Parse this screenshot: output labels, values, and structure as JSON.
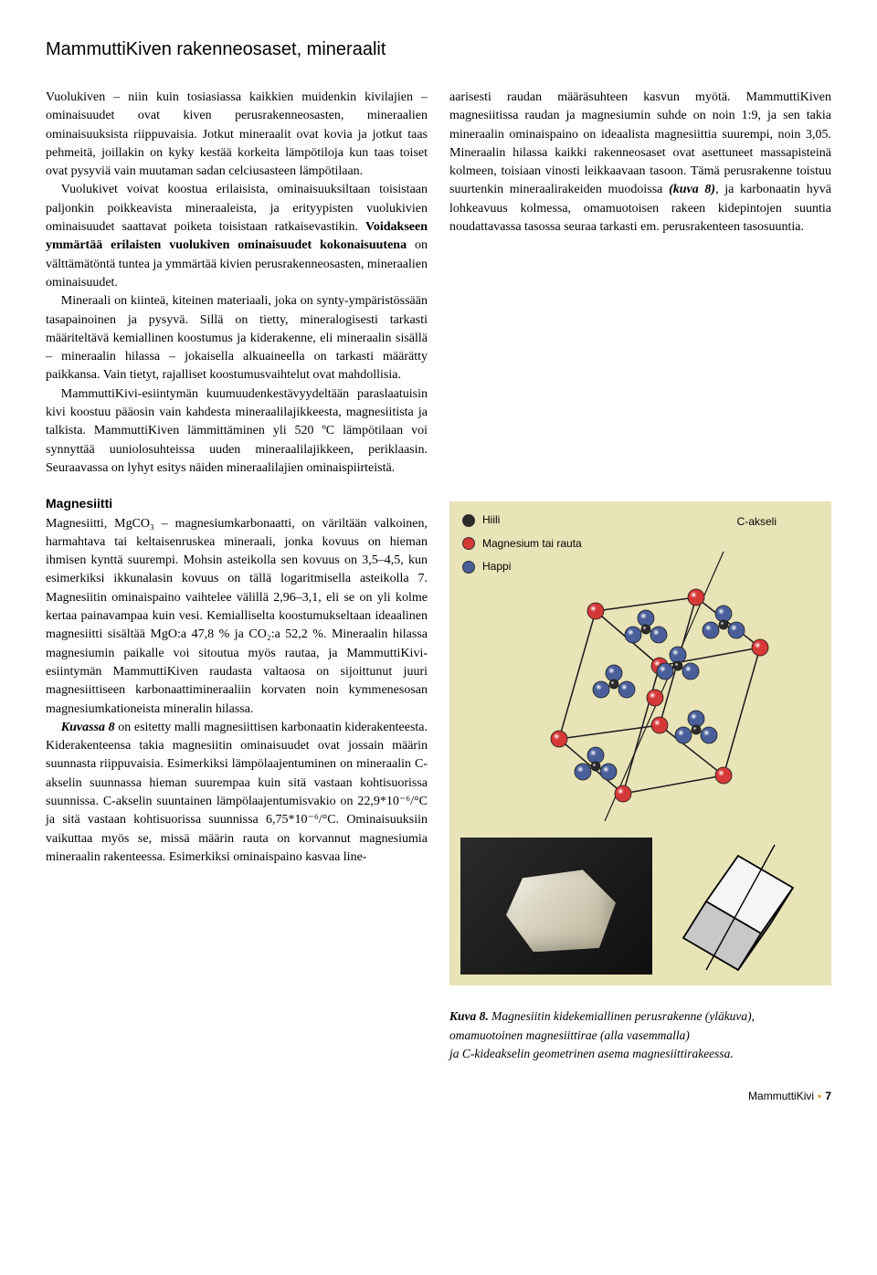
{
  "page_title": "MammuttiKiven rakenneosaset, mineraalit",
  "left": {
    "p1": "Vuolukiven – niin kuin tosiasiassa kaikkien muidenkin kivilajien – ominaisuudet ovat kiven perusrakenneosasten, mineraalien ominaisuuksista riippuvaisia. Jotkut mineraalit ovat kovia ja jotkut taas pehmeitä, joillakin on kyky kestää korkeita lämpötiloja kun taas toiset ovat pysyviä vain muutaman sadan celciusasteen lämpötilaan.",
    "p2a": "Vuolukivet voivat koostua erilaisista, ominaisuuksiltaan toisistaan paljonkin poikkeavista mineraaleista, ja erityypisten vuolukivien ominaisuudet saattavat poiketa toisistaan ratkaisevastikin. ",
    "p2b": "Voidakseen ymmärtää erilaisten vuolukiven ominaisuudet kokonaisuutena",
    "p2c": " on välttämätöntä tuntea ja ymmärtää kivien perusrakenneosasten, mineraalien ominaisuudet.",
    "p3": "Mineraali on kiinteä, kiteinen materiaali, joka on synty-ympäristössään tasapainoinen ja pysyvä. Sillä on tietty, mineralogisesti tarkasti määriteltävä kemiallinen koostumus ja kiderakenne, eli mineraalin sisällä – mineraalin hilassa – jokaisella alkuaineella on tarkasti määrätty paikkansa. Vain tietyt, rajalliset koostumusvaihtelut ovat mahdollisia.",
    "p4": "MammuttiKivi-esiintymän kuumuudenkestävyydeltään paraslaatuisin kivi koostuu pääosin vain kahdesta mineraalilajikkeesta, magnesiitista ja talkista. MammuttiKiven lämmittäminen yli 520 ºC lämpötilaan voi synnyttää uuniolosuhteissa uuden mineraalilajikkeen, periklaasin. Seuraavassa on lyhyt esitys näiden mineraalilajien ominaispiirteistä.",
    "heading": "Magnesiitti",
    "p5": "Magnesiitti, MgCO₃ – magnesiumkarbonaatti, on väriltään valkoinen, harmahtava tai keltaisenruskea mineraali, jonka kovuus on hieman ihmisen kynttä suurempi. Mohsin asteikolla sen kovuus on 3,5–4,5, kun esimerkiksi ikkunalasin kovuus on tällä logaritmisella asteikolla 7. Magnesiitin ominaispaino vaihtelee välillä 2,96–3,1, eli se on yli kolme kertaa painavampaa kuin vesi. Kemialliselta koostumukseltaan ideaalinen magnesiitti sisältää MgO:a 47,8 % ja CO₂:a 52,2 %. Mineraalin hilassa magnesiumin paikalle voi sitoutua myös rautaa, ja MammuttiKivi-esiintymän MammuttiKiven raudasta valtaosa on sijoittunut juuri magnesiittiseen karbonaattimineraaliin korvaten noin kymmenesosan magnesiumkationeista mineralin hilassa.",
    "p6a_label": "Kuvassa 8",
    "p6a": " on esitetty malli magnesiittisen karbonaatin kiderakenteesta. Kiderakenteensa takia magnesiitin ominaisuudet ovat jossain määrin suunnasta riippuvaisia. Esimerkiksi lämpölaajentuminen on mineraalin C-akselin suunnassa hieman suurempaa kuin sitä vastaan kohtisuorissa suunnissa. C-akselin suuntainen lämpölaajentumisvakio on 22,9*10⁻⁶/°C ja sitä vastaan kohtisuorissa suunnissa 6,75*10⁻⁶/°C. Ominaisuuksiin vaikuttaa myös se, missä määrin rauta on korvannut magnesiumia mineraalin rakenteessa. Esimerkiksi ominaispaino kasvaa line-"
  },
  "right": {
    "p1a": "aarisesti raudan määräsuhteen kasvun myötä. MammuttiKiven magnesiitissa raudan ja magnesiumin suhde on noin 1:9, ja sen takia mineraalin ominaispaino on ideaalista magnesiittia suurempi, noin 3,05. Mineraalin hilassa kaikki rakenneosaset ovat asettuneet massapisteinä kolmeen, toisiaan vinosti leikkaavaan tasoon. Tämä perusrakenne toistuu suurtenkin mineraalirakeiden muodoissa ",
    "p1_kuva": "(kuva 8)",
    "p1b": ", ja karbonaatin hyvä lohkeavuus kolmessa, omamuotoisen rakeen kidepintojen suuntia noudattavassa tasossa seuraa tarkasti em. perusrakenteen tasosuuntia."
  },
  "legend": {
    "hiili": {
      "label": "Hiili",
      "color": "#2a2a2a"
    },
    "mg_fe": {
      "label": "Magnesium tai rauta",
      "color": "#d63838"
    },
    "happi": {
      "label": "Happi",
      "color": "#4a5f9a"
    }
  },
  "axis_label": "C-akseli",
  "caption": {
    "prefix": "Kuva 8.",
    "line1": " Magnesiitin kidekemiallinen perusrakenne (yläkuva),",
    "line2": "omamuotoinen magnesiittirae (alla vasemmalla)",
    "line3": "ja C-kideakselin geometrinen asema magnesiittirakeessa."
  },
  "footer": {
    "brand": "MammuttiKivi",
    "page": "7"
  },
  "lattice": {
    "node_stroke": "#1a1a1a",
    "bond_color": "#1a1a1a",
    "axis_color": "#1a1a1a"
  },
  "rhomb": {
    "stroke": "#000000",
    "axis": "#000000"
  }
}
